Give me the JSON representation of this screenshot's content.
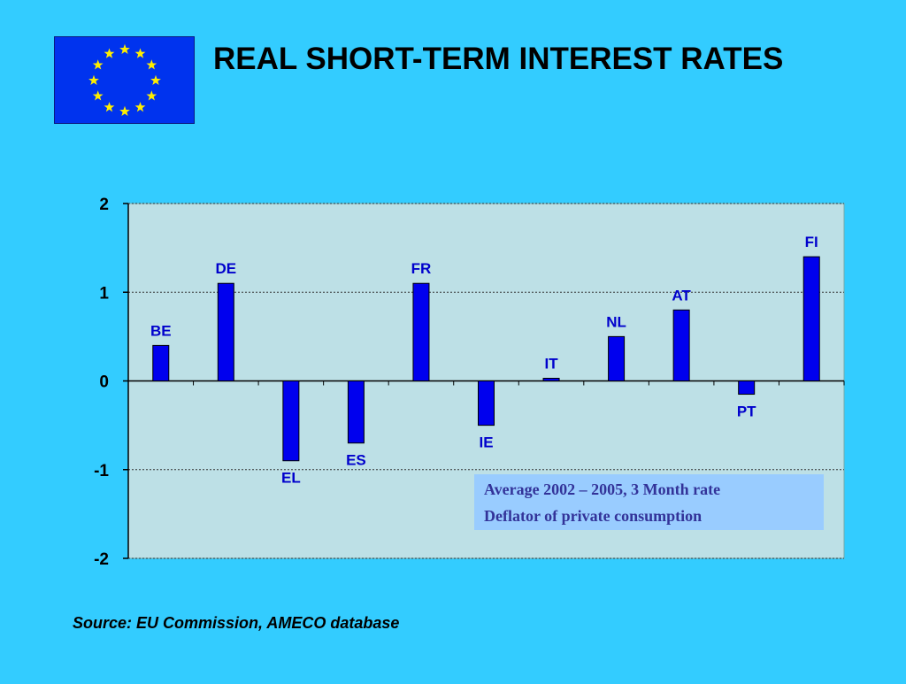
{
  "slide": {
    "title": "REAL SHORT-TERM INTEREST RATES",
    "source": "Source: EU Commission, AMECO database",
    "flag_icon": "eu-flag-icon",
    "background_color": "#33ccff"
  },
  "chart_data": {
    "type": "bar",
    "categories": [
      "BE",
      "DE",
      "EL",
      "ES",
      "FR",
      "IE",
      "IT",
      "NL",
      "AT",
      "PT",
      "FI"
    ],
    "values": [
      0.4,
      1.1,
      -0.9,
      -0.7,
      1.1,
      -0.5,
      0.03,
      0.5,
      0.8,
      -0.15,
      1.4
    ],
    "ylim": [
      -2,
      2
    ],
    "yticks": [
      2,
      1,
      0,
      -1,
      -2
    ],
    "ytick_labels": [
      "2",
      "1",
      "0",
      "-1",
      "-2"
    ],
    "grid": true,
    "bar_color": "#0000ee",
    "label_color": "#0000cc",
    "plot_background": "#bde0e6",
    "annotation": [
      "Average 2002 – 2005, 3 Month rate",
      "Deflator of private consumption"
    ],
    "annotation_color": "#333399",
    "annotation_background": "#99ccff"
  }
}
